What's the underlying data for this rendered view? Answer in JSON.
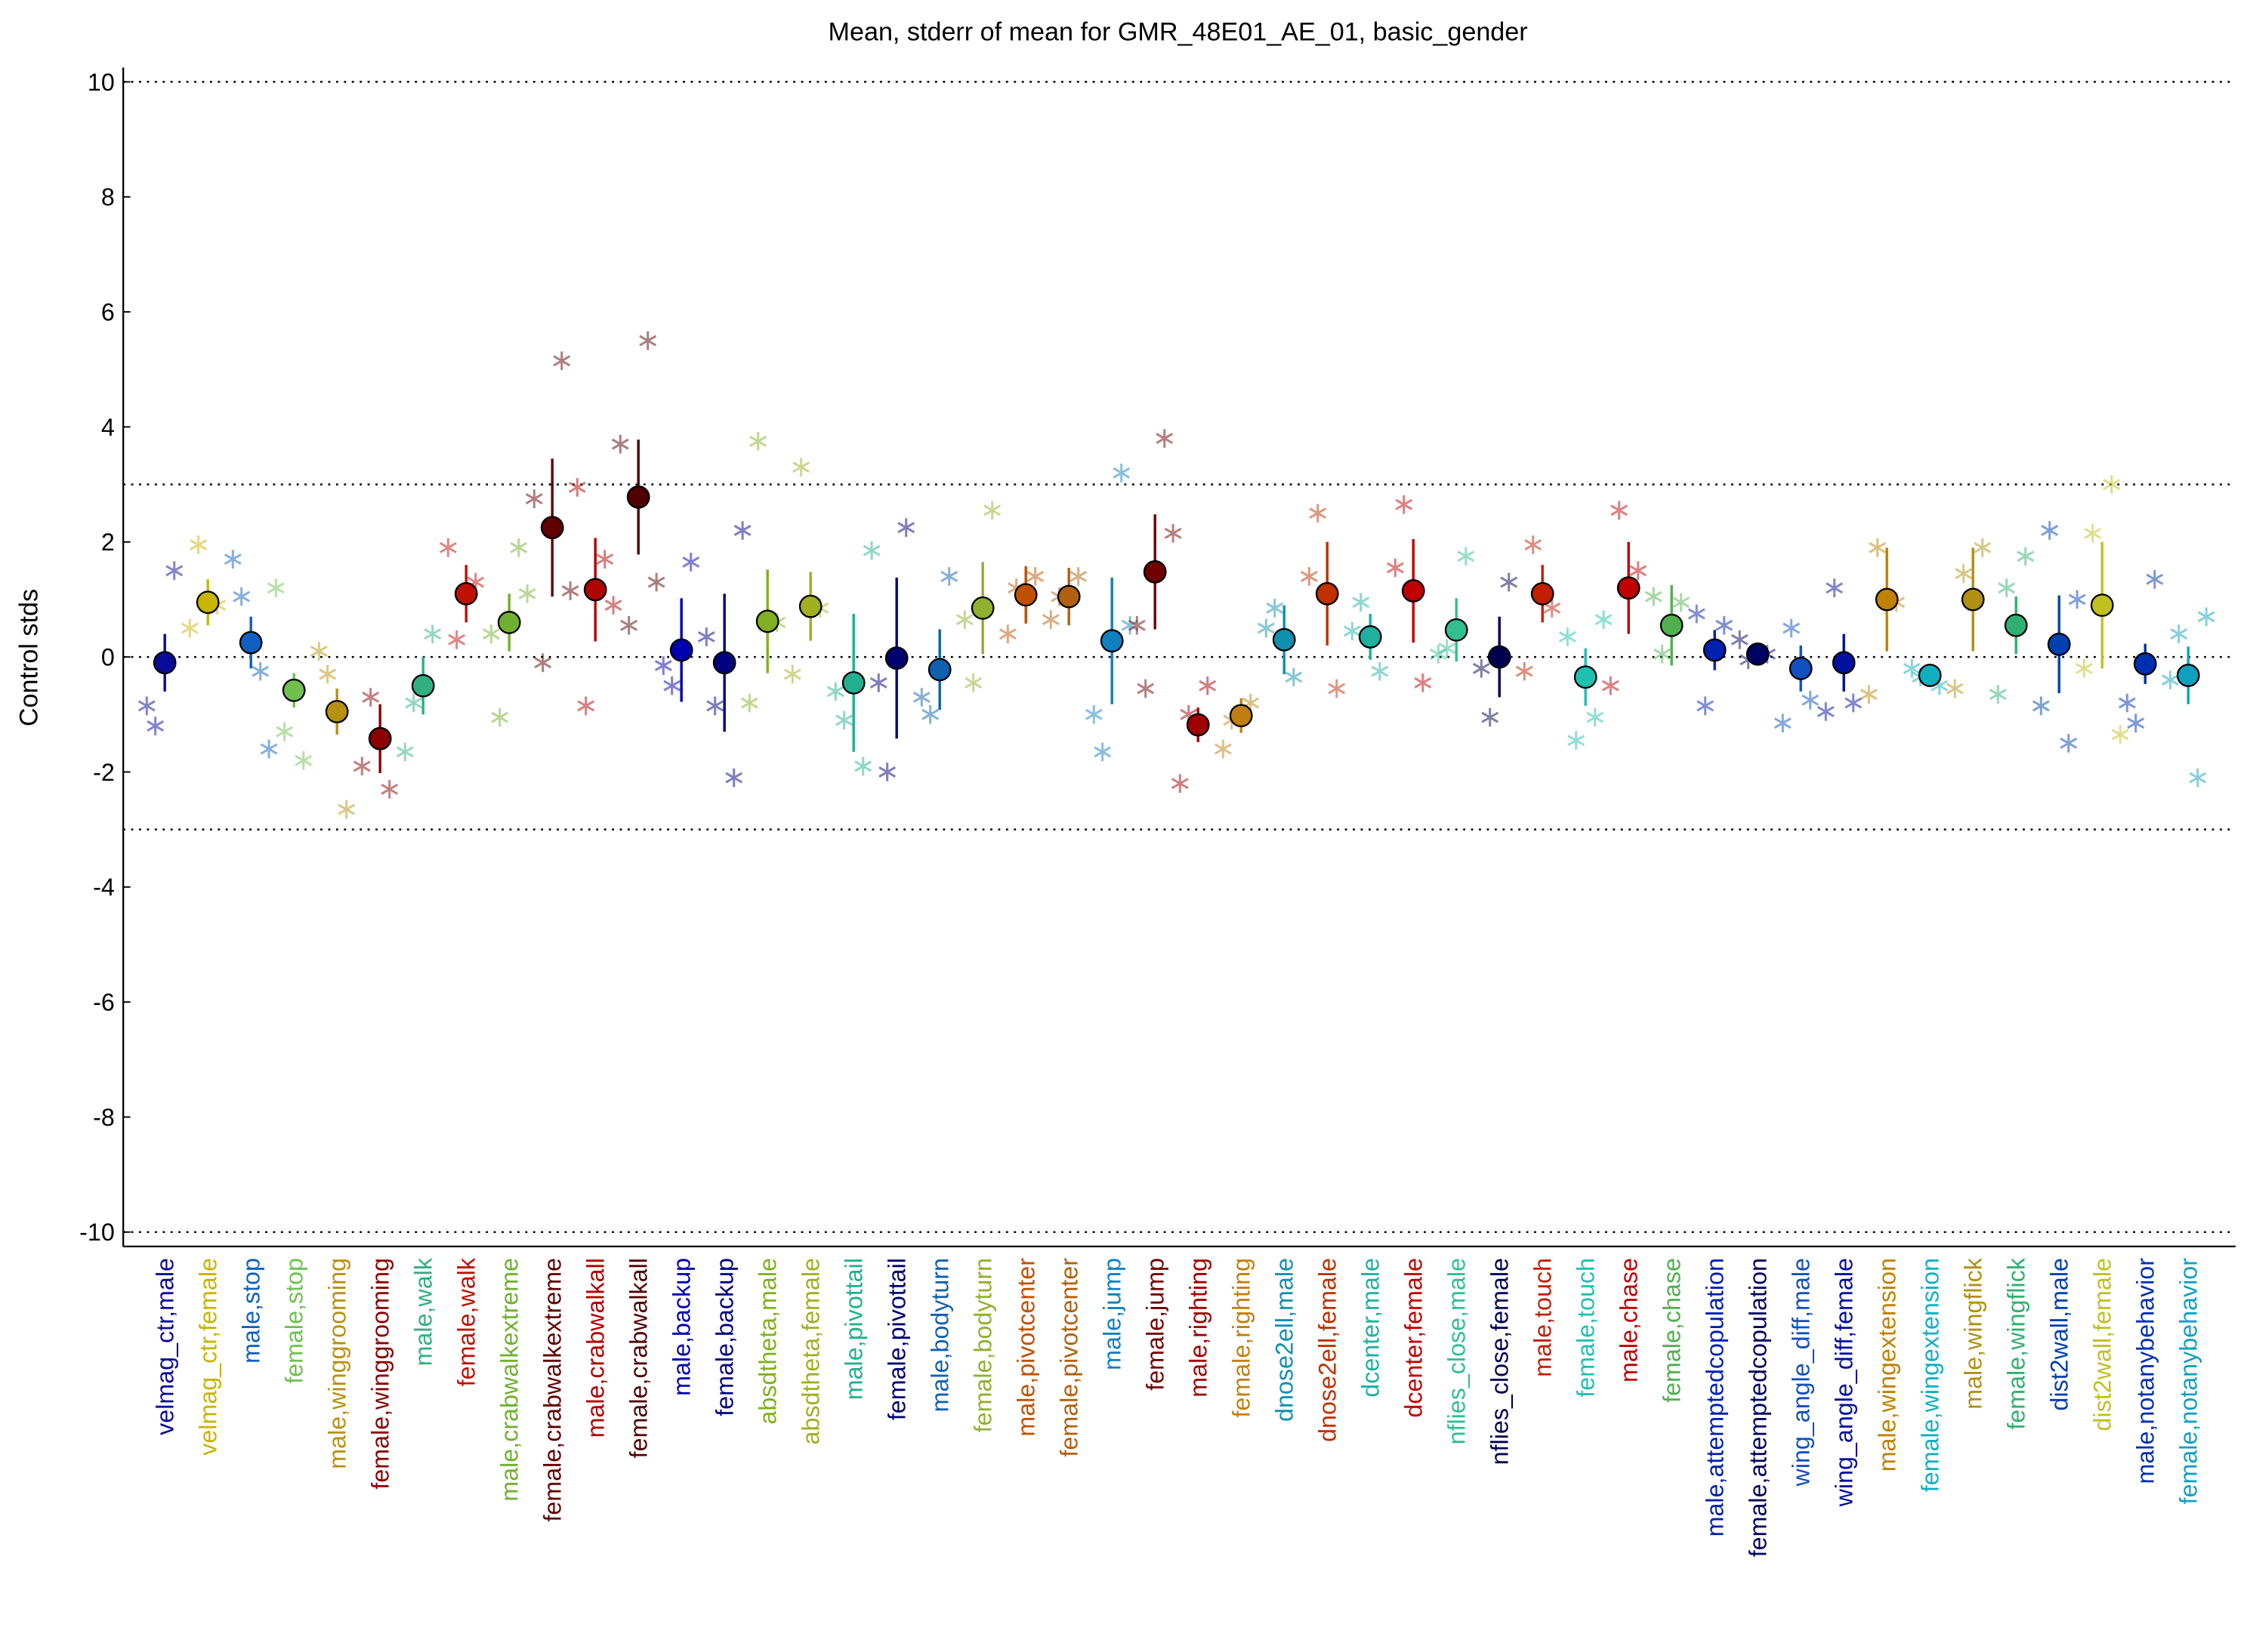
{
  "chart_data": {
    "type": "errorbar",
    "title": "Mean, stderr of mean for GMR_48E01_AE_01, basic_gender",
    "y_label": "Control stds",
    "ylim": [
      -10.25,
      10.25
    ],
    "yticks": [
      -10,
      -8,
      -6,
      -4,
      -2,
      0,
      2,
      4,
      6,
      8,
      10
    ],
    "reference_lines": [
      10,
      3,
      0,
      -3,
      -10
    ],
    "categories": [
      "velmag_ctr,male",
      "velmag_ctr,female",
      "male,stop",
      "female,stop",
      "male,winggrooming",
      "female,winggrooming",
      "male,walk",
      "female,walk",
      "male,crabwalkextreme",
      "female,crabwalkextreme",
      "male,crabwalkall",
      "female,crabwalkall",
      "male,backup",
      "female,backup",
      "absdtheta,male",
      "absdtheta,female",
      "male,pivottail",
      "female,pivottail",
      "male,bodyturn",
      "female,bodyturn",
      "male,pivotcenter",
      "female,pivotcenter",
      "male,jump",
      "female,jump",
      "male,righting",
      "female,righting",
      "dnose2ell,male",
      "dnose2ell,female",
      "dcenter,male",
      "dcenter,female",
      "nflies_close,male",
      "nflies_close,female",
      "male,touch",
      "female,touch",
      "male,chase",
      "female,chase",
      "male,attemptedcopulation",
      "female,attemptedcopulation",
      "wing_angle_diff,male",
      "wing_angle_diff,female",
      "male,wingextension",
      "female,wingextension",
      "male,wingflick",
      "female,wingflick",
      "dist2wall,male",
      "dist2wall,female",
      "male,notanybehavior",
      "female,notanybehavior"
    ],
    "values": [
      -0.1,
      0.95,
      0.25,
      -0.58,
      -0.95,
      -1.42,
      -0.5,
      1.1,
      0.6,
      2.25,
      1.17,
      2.78,
      0.12,
      -0.1,
      0.62,
      0.88,
      -0.45,
      -0.02,
      -0.22,
      0.85,
      1.08,
      1.05,
      0.28,
      1.48,
      -1.18,
      -1.02,
      0.3,
      1.1,
      0.35,
      1.15,
      0.47,
      0.0,
      1.1,
      -0.35,
      1.2,
      0.55,
      0.12,
      0.05,
      -0.2,
      -0.1,
      1.0,
      -0.32,
      1.0,
      0.55,
      0.22,
      0.9,
      -0.12,
      -0.32
    ],
    "errors": [
      0.5,
      0.4,
      0.45,
      0.3,
      0.4,
      0.6,
      0.5,
      0.5,
      0.5,
      1.2,
      0.9,
      1.0,
      0.9,
      1.2,
      0.9,
      0.6,
      1.2,
      1.4,
      0.7,
      0.8,
      0.5,
      0.5,
      1.1,
      1.0,
      0.3,
      0.3,
      0.6,
      0.9,
      0.4,
      0.9,
      0.55,
      0.7,
      0.5,
      0.5,
      0.8,
      0.7,
      0.35,
      0.2,
      0.4,
      0.5,
      0.9,
      0.2,
      0.9,
      0.5,
      0.85,
      1.1,
      0.35,
      0.5
    ],
    "colors": [
      "#0a0a9a",
      "#c8b400",
      "#1060c0",
      "#70c050",
      "#b89010",
      "#8b0000",
      "#30b080",
      "#c01000",
      "#70b030",
      "#600000",
      "#b00000",
      "#500000",
      "#0000b0",
      "#000080",
      "#80b020",
      "#a0b020",
      "#20b090",
      "#000070",
      "#1060b0",
      "#90b030",
      "#c05000",
      "#b06010",
      "#1080c0",
      "#700000",
      "#a00000",
      "#c08010",
      "#1090b0",
      "#c03000",
      "#20b0a0",
      "#c00000",
      "#30c090",
      "#000050",
      "#c02000",
      "#20c0b0",
      "#c00000",
      "#50b050",
      "#0020b0",
      "#000060",
      "#1050c0",
      "#0010a0",
      "#c08000",
      "#10b0c0",
      "#b09010",
      "#30b070",
      "#0040b0",
      "#c0c020",
      "#0030b0",
      "#10a0c0"
    ],
    "experiments": [
      [
        -0.85,
        -1.2,
        1.5
      ],
      [
        0.5,
        1.95,
        0.9
      ],
      [
        1.7,
        1.05,
        -0.25,
        -1.6
      ],
      [
        1.2,
        -1.3,
        -1.8
      ],
      [
        0.1,
        -0.3,
        -2.65
      ],
      [
        -1.9,
        -0.7,
        -2.3
      ],
      [
        -1.65,
        -0.8,
        0.4
      ],
      [
        1.9,
        0.3,
        1.3
      ],
      [
        0.4,
        -1.05,
        1.9,
        1.1
      ],
      [
        2.75,
        -0.1,
        5.15,
        1.15
      ],
      [
        2.95,
        -0.85,
        1.7,
        0.9
      ],
      [
        3.7,
        0.55,
        5.5,
        1.3
      ],
      [
        -0.15,
        -0.5,
        1.65
      ],
      [
        0.35,
        -0.85,
        -2.1,
        2.2
      ],
      [
        -0.8,
        3.75,
        0.6
      ],
      [
        -0.3,
        3.3,
        0.85
      ],
      [
        -0.6,
        -1.1,
        -1.9,
        1.85
      ],
      [
        -0.45,
        -2.0,
        2.25
      ],
      [
        -0.7,
        -1.0,
        1.4
      ],
      [
        0.65,
        -0.45,
        2.55
      ],
      [
        0.4,
        1.2,
        1.4
      ],
      [
        0.65,
        1.05,
        1.4
      ],
      [
        -1.0,
        -1.65,
        3.2,
        0.55
      ],
      [
        0.55,
        -0.55,
        3.8,
        2.15
      ],
      [
        -2.2,
        -1.0,
        -0.5
      ],
      [
        -1.6,
        -1.1,
        -0.8
      ],
      [
        0.5,
        0.85,
        -0.35
      ],
      [
        1.4,
        2.5,
        -0.55
      ],
      [
        0.45,
        0.95,
        -0.25
      ],
      [
        1.55,
        2.65,
        -0.45
      ],
      [
        0.05,
        0.15,
        1.75
      ],
      [
        -0.2,
        -1.05,
        1.3
      ],
      [
        -0.25,
        1.95,
        0.85
      ],
      [
        0.35,
        -1.45,
        -1.05,
        0.65
      ],
      [
        -0.5,
        2.55,
        1.5
      ],
      [
        1.05,
        0.05,
        0.95
      ],
      [
        0.75,
        -0.85,
        0.55
      ],
      [
        0.3,
        -0.05,
        0.05
      ],
      [
        -1.15,
        0.5,
        -0.75
      ],
      [
        -0.95,
        1.2,
        -0.8
      ],
      [
        -0.65,
        1.9,
        0.95
      ],
      [
        -0.2,
        -0.35,
        -0.5
      ],
      [
        -0.55,
        1.45,
        1.9
      ],
      [
        -0.65,
        1.2,
        1.75
      ],
      [
        -0.85,
        2.2,
        -1.5,
        1.0
      ],
      [
        -0.2,
        2.15,
        3.0,
        -1.35
      ],
      [
        -0.8,
        -1.15,
        1.35
      ],
      [
        -0.4,
        0.4,
        -2.1,
        0.7
      ]
    ]
  }
}
